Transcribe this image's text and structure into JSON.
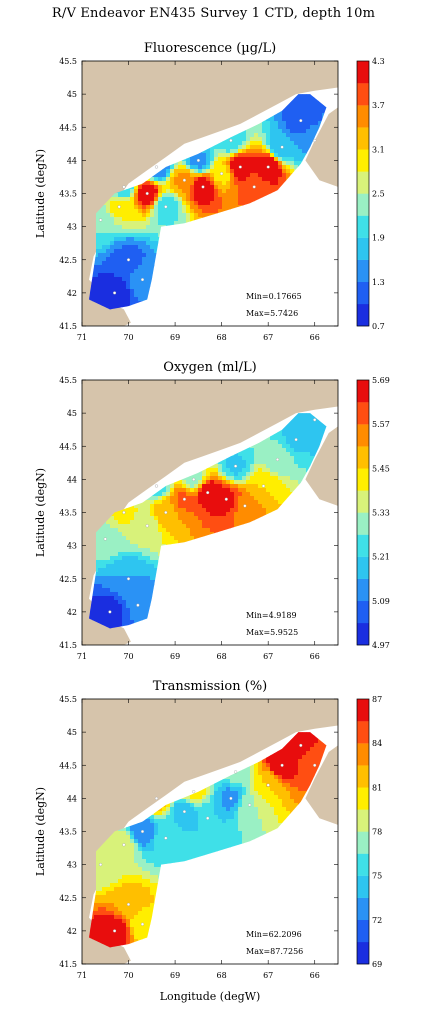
{
  "main_title": "R/V Endeavor EN435 Survey 1 CTD, depth 10m",
  "colors": {
    "land": "#d6c4ab",
    "ramp": [
      "#1a2ee0",
      "#1f5ff2",
      "#2a92f5",
      "#2ec5f0",
      "#3fe0e8",
      "#9af0c4",
      "#d8f27a",
      "#ffee00",
      "#ffbf00",
      "#ff8c00",
      "#ff4e12",
      "#e80d0d"
    ]
  },
  "chart_data": [
    {
      "type": "heatmap",
      "title": "Fluorescence (µg/L)",
      "xlabel": "",
      "ylabel": "Latitude (degN)",
      "xlim": [
        71,
        65.5
      ],
      "ylim": [
        41.5,
        45.5
      ],
      "x_ticks": [
        "71",
        "70",
        "69",
        "68",
        "67",
        "66"
      ],
      "y_ticks": [
        "41.5",
        "42",
        "42.5",
        "43",
        "43.5",
        "44",
        "44.5",
        "45",
        "45.5"
      ],
      "colorbar_ticks": [
        "0.7",
        "1.3",
        "1.9",
        "2.5",
        "3.1",
        "3.7",
        "4.3"
      ],
      "colorbar_range": [
        0.7,
        4.3
      ],
      "min_label": "Min=0.17665",
      "max_label": "Max=5.7426",
      "points": [
        [
          70.3,
          42.0,
          0.8
        ],
        [
          70.0,
          42.5,
          1.2
        ],
        [
          69.7,
          42.2,
          1.5
        ],
        [
          70.6,
          43.1,
          2.2
        ],
        [
          70.2,
          43.3,
          2.9
        ],
        [
          69.6,
          43.5,
          4.3
        ],
        [
          69.2,
          43.3,
          2.0
        ],
        [
          68.8,
          43.7,
          3.5
        ],
        [
          68.4,
          43.6,
          4.3
        ],
        [
          68.0,
          43.8,
          3.0
        ],
        [
          67.6,
          43.9,
          4.3
        ],
        [
          67.3,
          43.6,
          3.8
        ],
        [
          67.0,
          43.9,
          4.3
        ],
        [
          66.7,
          44.2,
          1.6
        ],
        [
          66.3,
          44.6,
          1.1
        ],
        [
          66.0,
          44.3,
          1.5
        ],
        [
          67.8,
          44.3,
          1.9
        ],
        [
          68.5,
          44.0,
          1.5
        ],
        [
          69.4,
          43.9,
          1.3
        ],
        [
          70.1,
          43.6,
          1.9
        ]
      ]
    },
    {
      "type": "heatmap",
      "title": "Oxygen (ml/L)",
      "xlabel": "",
      "ylabel": "Latitude (degN)",
      "xlim": [
        71,
        65.5
      ],
      "ylim": [
        41.5,
        45.5
      ],
      "x_ticks": [
        "71",
        "70",
        "69",
        "68",
        "67",
        "66"
      ],
      "y_ticks": [
        "41.5",
        "42",
        "42.5",
        "43",
        "43.5",
        "44",
        "44.5",
        "45",
        "45.5"
      ],
      "colorbar_ticks": [
        "4.97",
        "5.09",
        "5.21",
        "5.33",
        "5.45",
        "5.57",
        "5.69"
      ],
      "colorbar_range": [
        4.97,
        5.69
      ],
      "min_label": "Min=4.9189",
      "max_label": "Max=5.9525",
      "points": [
        [
          70.4,
          42.0,
          5.0
        ],
        [
          70.0,
          42.5,
          5.15
        ],
        [
          69.8,
          42.1,
          5.1
        ],
        [
          70.5,
          43.1,
          5.3
        ],
        [
          70.1,
          43.5,
          5.4
        ],
        [
          69.6,
          43.3,
          5.35
        ],
        [
          69.2,
          43.5,
          5.5
        ],
        [
          68.8,
          43.7,
          5.58
        ],
        [
          68.3,
          43.8,
          5.69
        ],
        [
          67.9,
          43.7,
          5.66
        ],
        [
          67.5,
          43.6,
          5.55
        ],
        [
          67.1,
          43.9,
          5.45
        ],
        [
          66.8,
          44.3,
          5.3
        ],
        [
          66.4,
          44.6,
          5.2
        ],
        [
          66.0,
          44.9,
          5.15
        ],
        [
          67.7,
          44.2,
          5.2
        ],
        [
          68.6,
          44.0,
          5.3
        ],
        [
          69.4,
          43.9,
          5.25
        ]
      ]
    },
    {
      "type": "heatmap",
      "title": "Transmission (%)",
      "xlabel": "Longitude (degW)",
      "ylabel": "Latitude (degN)",
      "xlim": [
        71,
        65.5
      ],
      "ylim": [
        41.5,
        45.5
      ],
      "x_ticks": [
        "71",
        "70",
        "69",
        "68",
        "67",
        "66"
      ],
      "y_ticks": [
        "41.5",
        "42",
        "42.5",
        "43",
        "43.5",
        "44",
        "44.5",
        "45",
        "45.5"
      ],
      "colorbar_ticks": [
        "69",
        "72",
        "75",
        "78",
        "81",
        "84",
        "87"
      ],
      "colorbar_range": [
        69,
        87
      ],
      "min_label": "Min=62.2096",
      "max_label": "Max=87.7256",
      "points": [
        [
          70.3,
          42.0,
          87
        ],
        [
          70.0,
          42.4,
          82
        ],
        [
          69.7,
          42.1,
          80
        ],
        [
          70.6,
          43.0,
          78
        ],
        [
          70.1,
          43.3,
          79
        ],
        [
          69.7,
          43.5,
          72
        ],
        [
          69.2,
          43.4,
          76
        ],
        [
          68.8,
          43.8,
          74
        ],
        [
          68.3,
          43.7,
          75
        ],
        [
          67.8,
          44.0,
          73
        ],
        [
          67.4,
          43.9,
          78
        ],
        [
          67.0,
          44.2,
          81
        ],
        [
          66.7,
          44.5,
          87
        ],
        [
          66.3,
          44.8,
          86
        ],
        [
          66.0,
          44.5,
          84
        ],
        [
          67.7,
          44.4,
          77
        ],
        [
          68.6,
          44.1,
          80
        ],
        [
          69.4,
          44.0,
          82
        ]
      ]
    }
  ]
}
